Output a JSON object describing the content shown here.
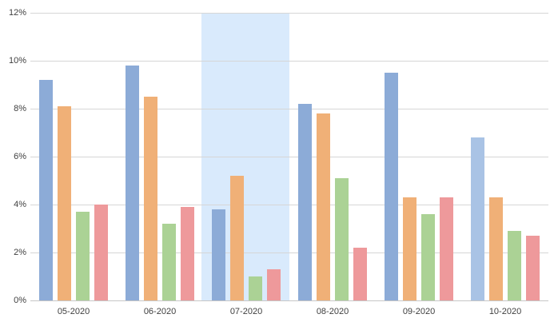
{
  "chart_data": {
    "type": "bar",
    "title": "",
    "xlabel": "",
    "ylabel": "",
    "legend": "none",
    "categories": [
      "05-2020",
      "06-2020",
      "07-2020",
      "08-2020",
      "09-2020",
      "10-2020"
    ],
    "series": [
      {
        "name": "series-blue",
        "color": "#8cabd7",
        "values": [
          9.2,
          9.8,
          3.8,
          8.2,
          9.5,
          6.8
        ]
      },
      {
        "name": "series-orange",
        "color": "#f0b077",
        "values": [
          8.1,
          8.5,
          5.2,
          7.8,
          4.3,
          4.3
        ]
      },
      {
        "name": "series-green",
        "color": "#abd295",
        "values": [
          3.7,
          3.2,
          1.0,
          5.1,
          3.6,
          2.9
        ]
      },
      {
        "name": "series-red",
        "color": "#ee999b",
        "values": [
          4.0,
          3.9,
          1.3,
          2.2,
          4.3,
          2.7
        ]
      }
    ],
    "bar_color_overrides": [
      {
        "category_index": 5,
        "series_index": 0,
        "color": "#a9c3e5"
      }
    ],
    "highlight_band": {
      "category": "07-2020",
      "category_index": 2,
      "color": "#d9eafc"
    },
    "y_axis": {
      "min": 0,
      "max": 12,
      "tick_step": 2,
      "tick_labels": [
        "0%",
        "2%",
        "4%",
        "6%",
        "8%",
        "10%",
        "12%"
      ],
      "unit": "%"
    },
    "grid": {
      "horizontal": true,
      "color": "#d6d6d6"
    }
  }
}
